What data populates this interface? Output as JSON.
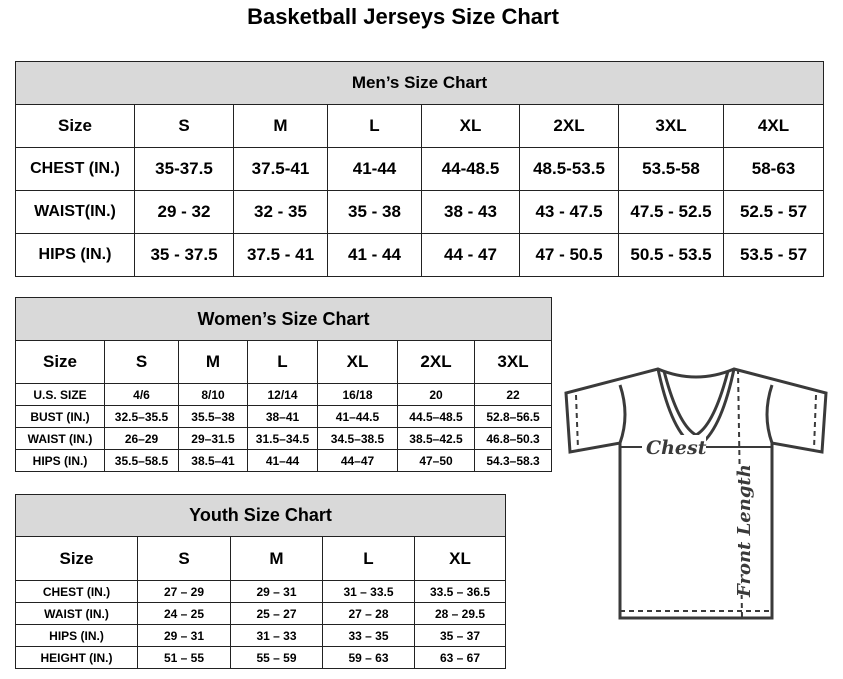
{
  "title": "Basketball Jerseys Size Chart",
  "men": {
    "title": "Men’s Size Chart",
    "headers": [
      "Size",
      "S",
      "M",
      "L",
      "XL",
      "2XL",
      "3XL",
      "4XL"
    ],
    "rows": [
      [
        "CHEST (IN.)",
        "35-37.5",
        "37.5-41",
        "41-44",
        "44-48.5",
        "48.5-53.5",
        "53.5-58",
        "58-63"
      ],
      [
        "WAIST(IN.)",
        "29 - 32",
        "32 - 35",
        "35 - 38",
        "38 - 43",
        "43 - 47.5",
        "47.5 - 52.5",
        "52.5 - 57"
      ],
      [
        "HIPS (IN.)",
        "35 - 37.5",
        "37.5 - 41",
        "41 - 44",
        "44 - 47",
        "47 - 50.5",
        "50.5 - 53.5",
        "53.5 - 57"
      ]
    ]
  },
  "women": {
    "title": "Women’s Size Chart",
    "headers": [
      "Size",
      "S",
      "M",
      "L",
      "XL",
      "2XL",
      "3XL"
    ],
    "rows": [
      [
        "U.S. SIZE",
        "4/6",
        "8/10",
        "12/14",
        "16/18",
        "20",
        "22"
      ],
      [
        "BUST (IN.)",
        "32.5–35.5",
        "35.5–38",
        "38–41",
        "41–44.5",
        "44.5–48.5",
        "52.8–56.5"
      ],
      [
        "WAIST (IN.)",
        "26–29",
        "29–31.5",
        "31.5–34.5",
        "34.5–38.5",
        "38.5–42.5",
        "46.8–50.3"
      ],
      [
        "HIPS (IN.)",
        "35.5–58.5",
        "38.5–41",
        "41–44",
        "44–47",
        "47–50",
        "54.3–58.3"
      ]
    ]
  },
  "youth": {
    "title": "Youth Size Chart",
    "headers": [
      "Size",
      "S",
      "M",
      "L",
      "XL"
    ],
    "rows": [
      [
        "CHEST (IN.)",
        "27 – 29",
        "29 – 31",
        "31 – 33.5",
        "33.5 – 36.5"
      ],
      [
        "WAIST (IN.)",
        "24 – 25",
        "25 – 27",
        "27 – 28",
        "28 – 29.5"
      ],
      [
        "HIPS (IN.)",
        "29 – 31",
        "31 – 33",
        "33 – 35",
        "35 – 37"
      ],
      [
        "HEIGHT (IN.)",
        "51 – 55",
        "55 – 59",
        "59 – 63",
        "63 – 67"
      ]
    ]
  },
  "diagram": {
    "chest_label": "Chest",
    "length_label": "Front Length"
  }
}
